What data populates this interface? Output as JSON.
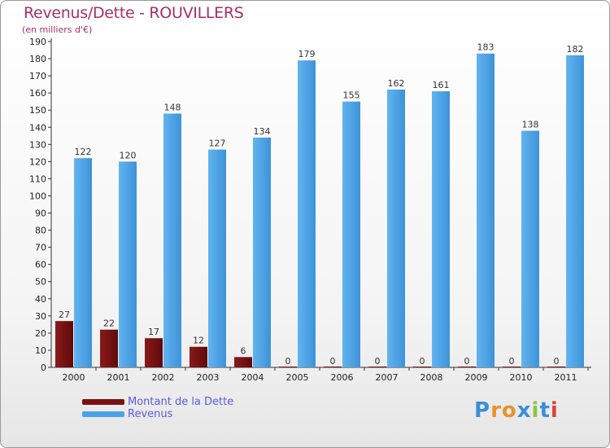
{
  "header": {
    "title": "Revenus/Dette - ROUVILLERS",
    "subtitle": "(en milliers d'€)"
  },
  "legend": {
    "items": [
      {
        "label": "Montant de la Dette",
        "color": "#7a1010"
      },
      {
        "label": "Revenus",
        "color": "#4aa3e6"
      }
    ]
  },
  "brand": {
    "letters": [
      {
        "char": "P",
        "color": "#3b8fd6"
      },
      {
        "char": "r",
        "color": "#e6932a"
      },
      {
        "char": "o",
        "color": "#e6932a"
      },
      {
        "char": "x",
        "color": "#3b8fd6"
      },
      {
        "char": "i",
        "color": "#8cc63f"
      },
      {
        "char": "t",
        "color": "#3b8fd6"
      },
      {
        "char": "i",
        "color": "#d8443c"
      }
    ]
  },
  "chart_data": {
    "type": "bar",
    "title": "Revenus/Dette - ROUVILLERS",
    "subtitle": "(en milliers d'€)",
    "categories": [
      "2000",
      "2001",
      "2002",
      "2003",
      "2004",
      "2005",
      "2006",
      "2007",
      "2008",
      "2009",
      "2010",
      "2011"
    ],
    "series": [
      {
        "name": "Montant de la Dette",
        "color": "#7a1010",
        "values": [
          27,
          22,
          17,
          12,
          6,
          0,
          0,
          0,
          0,
          0,
          0,
          0
        ]
      },
      {
        "name": "Revenus",
        "color": "#4aa3e6",
        "values": [
          122,
          120,
          148,
          127,
          134,
          179,
          155,
          162,
          161,
          183,
          138,
          182
        ]
      }
    ],
    "ylim": [
      0,
      190
    ],
    "yticks": [
      0,
      10,
      20,
      30,
      40,
      50,
      60,
      70,
      80,
      90,
      100,
      110,
      120,
      130,
      140,
      150,
      160,
      170,
      180,
      190
    ],
    "grid": false,
    "legend_position": "bottom-left"
  }
}
